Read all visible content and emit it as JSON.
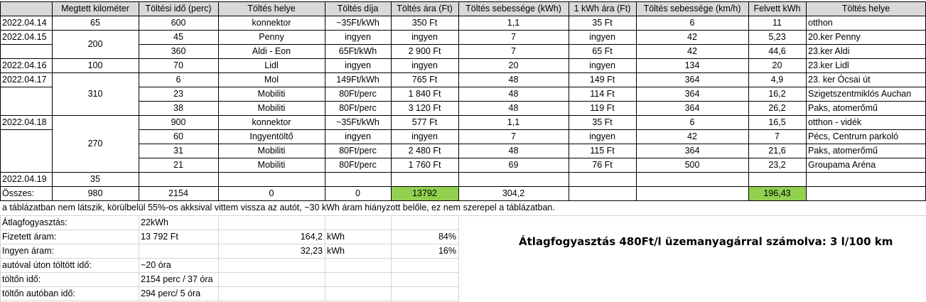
{
  "table": {
    "headers": [
      "",
      "Megtett kilométer",
      "Töltési idő (perc)",
      "Töltés helye",
      "Töltés díja",
      "Töltés ára (Ft)",
      "Töltés sebessége (kWh)",
      "1 kWh ára (Ft)",
      "Töltés sebessége (km/h)",
      "Felvett kWh",
      "Töltés helye"
    ],
    "rows": [
      [
        "",
        "",
        "600",
        "konnektor",
        "~35Ft/kWh",
        "350 Ft",
        "1,1",
        "35 Ft",
        "6",
        "11",
        "otthon"
      ],
      [
        "",
        "",
        "45",
        "Penny",
        "ingyen",
        "ingyen",
        "7",
        "ingyen",
        "42",
        "5,23",
        "20.ker Penny"
      ],
      [
        "",
        "",
        "360",
        "Aldi - Eon",
        "65Ft/kWh",
        "2 900 Ft",
        "7",
        "65 Ft",
        "42",
        "44,6",
        "23.ker Aldi"
      ],
      [
        "",
        "",
        "70",
        "Lidl",
        "ingyen",
        "ingyen",
        "20",
        "ingyen",
        "134",
        "20",
        "23.ker Lidl"
      ],
      [
        "",
        "",
        "6",
        "Mol",
        "149Ft/kWh",
        "765 Ft",
        "48",
        "149 Ft",
        "364",
        "4,9",
        "23. ker Ócsai út"
      ],
      [
        "",
        "",
        "23",
        "Mobiliti",
        "80Ft/perc",
        "1 840 Ft",
        "48",
        "114 Ft",
        "364",
        "16,2",
        "Szigetszentmiklós Auchan"
      ],
      [
        "",
        "",
        "38",
        "Mobiliti",
        "80Ft/perc",
        "3 120 Ft",
        "48",
        "119 Ft",
        "364",
        "26,2",
        "Paks, atomerőmű"
      ],
      [
        "",
        "",
        "900",
        "konnektor",
        "~35Ft/kWh",
        "577 Ft",
        "1,1",
        "35 Ft",
        "6",
        "16,5",
        "otthon - vidék"
      ],
      [
        "",
        "",
        "60",
        "Ingyentöltő",
        "ingyen",
        "ingyen",
        "7",
        "ingyen",
        "42",
        "7",
        "Pécs, Centrum parkoló"
      ],
      [
        "",
        "",
        "31",
        "Mobiliti",
        "80Ft/perc",
        "2 480 Ft",
        "48",
        "115 Ft",
        "364",
        "21,6",
        "Paks, atomerőmű"
      ],
      [
        "",
        "",
        "21",
        "Mobiliti",
        "80Ft/perc",
        "1 760 Ft",
        "69",
        "76 Ft",
        "500",
        "23,2",
        "Groupama Aréna"
      ],
      [
        "",
        "",
        "",
        "",
        "",
        "",
        "",
        "",
        "",
        "",
        ""
      ]
    ],
    "dates": [
      {
        "label": "2022.04.14",
        "row_start": 0,
        "rows": 1,
        "km": "65"
      },
      {
        "label": "2022.04.15",
        "row_start": 1,
        "rows": 2,
        "km": "200"
      },
      {
        "label": "2022.04.16",
        "row_start": 3,
        "rows": 1,
        "km": "100"
      },
      {
        "label": "2022.04.17",
        "row_start": 4,
        "rows": 3,
        "km": "310"
      },
      {
        "label": "2022.04.18",
        "row_start": 7,
        "rows": 4,
        "km": "270"
      },
      {
        "label": "2022.04.19",
        "row_start": 11,
        "rows": 1,
        "km": "35"
      }
    ],
    "total_row": [
      "Összes:",
      "980",
      "2154",
      "0",
      "0",
      "13792",
      "304,2",
      "",
      "",
      "196,43",
      ""
    ],
    "highlight_color": "#92d050",
    "header_color": "#d9d9d9"
  },
  "note": "a táblázatban nem látszik, körülbelül 55%-os akksival  vittem vissza az autót, ~30 kWh áram hiányzott belőle, ez nem szerepel a táblázatban.",
  "summary": [
    {
      "label": "Átlagfogyasztás:",
      "value": "22kWh",
      "amount": "",
      "unit": "",
      "pct": ""
    },
    {
      "label": "Fizetett áram:",
      "value": "13 792 Ft",
      "amount": "164,2",
      "unit": "kWh",
      "pct": "84%"
    },
    {
      "label": "Ingyen áram:",
      "value": "",
      "amount": "32,23",
      "unit": "kWh",
      "pct": "16%"
    },
    {
      "label": "autóval úton töltött idő:",
      "value": "~20 óra",
      "amount": "",
      "unit": "",
      "pct": ""
    },
    {
      "label": "töltőn idő:",
      "value": "2154 perc / 37 óra",
      "amount": "",
      "unit": "",
      "pct": ""
    },
    {
      "label": "töltőn autóban idő:",
      "value": "294 perc/ 5 óra",
      "amount": "",
      "unit": "",
      "pct": ""
    }
  ],
  "big_note": "Átlagfogyasztás 480Ft/l üzemanyagárral számolva: 3 l/100 km"
}
